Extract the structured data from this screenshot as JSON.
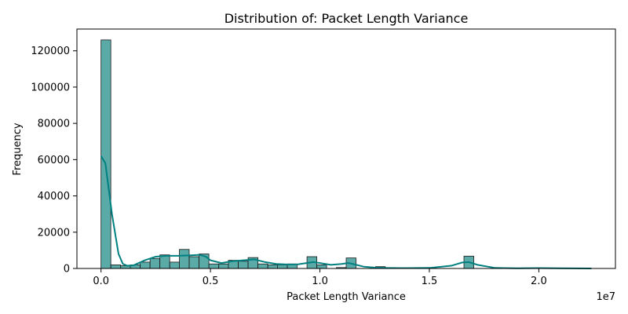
{
  "chart_data": {
    "type": "bar",
    "title": "Distribution of: Packet Length Variance",
    "xlabel": "Packet Length Variance",
    "ylabel": "Frequency",
    "x_offset_label": "1e7",
    "xlim": [
      -0.11,
      2.35
    ],
    "ylim": [
      0,
      132000
    ],
    "x_ticks": [
      0.0,
      0.5,
      1.0,
      1.5,
      2.0
    ],
    "x_tick_labels": [
      "0.0",
      "0.5",
      "1.0",
      "1.5",
      "2.0"
    ],
    "y_ticks": [
      0,
      20000,
      40000,
      60000,
      80000,
      100000,
      120000
    ],
    "y_tick_labels": [
      "0",
      "20000",
      "40000",
      "60000",
      "80000",
      "100000",
      "120000"
    ],
    "bin_width": 0.0448,
    "bins": [
      {
        "x": 0.0,
        "count": 126000
      },
      {
        "x": 0.045,
        "count": 2000
      },
      {
        "x": 0.09,
        "count": 1500
      },
      {
        "x": 0.134,
        "count": 2000
      },
      {
        "x": 0.179,
        "count": 3500
      },
      {
        "x": 0.224,
        "count": 5500
      },
      {
        "x": 0.269,
        "count": 7500
      },
      {
        "x": 0.314,
        "count": 3500
      },
      {
        "x": 0.358,
        "count": 10500
      },
      {
        "x": 0.403,
        "count": 6500
      },
      {
        "x": 0.448,
        "count": 8000
      },
      {
        "x": 0.493,
        "count": 2500
      },
      {
        "x": 0.538,
        "count": 2500
      },
      {
        "x": 0.582,
        "count": 4500
      },
      {
        "x": 0.627,
        "count": 4000
      },
      {
        "x": 0.672,
        "count": 6000
      },
      {
        "x": 0.717,
        "count": 2500
      },
      {
        "x": 0.762,
        "count": 2000
      },
      {
        "x": 0.806,
        "count": 2000
      },
      {
        "x": 0.851,
        "count": 2500
      },
      {
        "x": 0.941,
        "count": 6500
      },
      {
        "x": 0.986,
        "count": 2000
      },
      {
        "x": 1.075,
        "count": 500
      },
      {
        "x": 1.12,
        "count": 5800
      },
      {
        "x": 1.254,
        "count": 1000
      },
      {
        "x": 1.658,
        "count": 6800
      }
    ],
    "kde": {
      "x": [
        0.0,
        0.02,
        0.05,
        0.08,
        0.1,
        0.12,
        0.15,
        0.2,
        0.25,
        0.3,
        0.35,
        0.4,
        0.45,
        0.48,
        0.5,
        0.55,
        0.6,
        0.65,
        0.7,
        0.75,
        0.8,
        0.85,
        0.9,
        0.95,
        0.97,
        1.0,
        1.05,
        1.1,
        1.13,
        1.15,
        1.2,
        1.25,
        1.3,
        1.4,
        1.5,
        1.6,
        1.65,
        1.68,
        1.72,
        1.8,
        1.9,
        2.0,
        2.1,
        2.24
      ],
      "y": [
        62000,
        58000,
        30000,
        8000,
        2500,
        1500,
        1800,
        4500,
        6500,
        7000,
        7000,
        7200,
        7500,
        6500,
        4500,
        3000,
        4000,
        4500,
        5000,
        3500,
        2500,
        2200,
        2300,
        3200,
        3500,
        3000,
        2000,
        2500,
        3000,
        2500,
        1000,
        500,
        300,
        200,
        300,
        1500,
        3300,
        3500,
        2000,
        300,
        100,
        200,
        100,
        0
      ]
    },
    "bar_color": "#5aaaa8",
    "kde_color": "#008080",
    "grid": false,
    "legend": "none"
  }
}
